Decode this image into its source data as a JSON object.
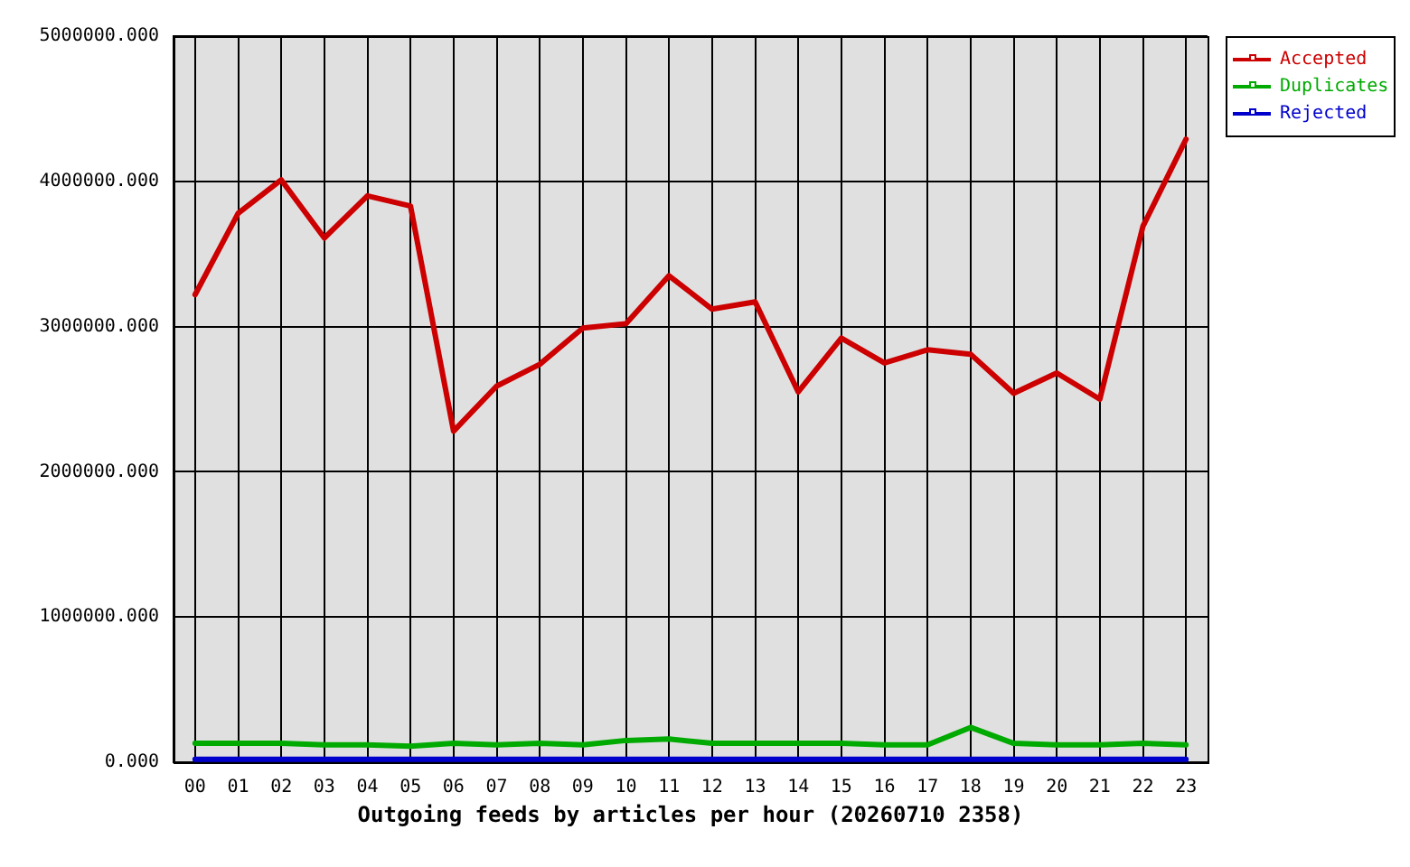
{
  "chart_data": {
    "type": "line",
    "xlabel": "Outgoing feeds by articles per hour (20260710 2358)",
    "categories": [
      "00",
      "01",
      "02",
      "03",
      "04",
      "05",
      "06",
      "07",
      "08",
      "09",
      "10",
      "11",
      "12",
      "13",
      "14",
      "15",
      "16",
      "17",
      "18",
      "19",
      "20",
      "21",
      "22",
      "23"
    ],
    "series": [
      {
        "name": "Accepted",
        "color": "#cc0000",
        "values": [
          3220000,
          3780000,
          4010000,
          3610000,
          3900000,
          3830000,
          2280000,
          2590000,
          2740000,
          2990000,
          3020000,
          3350000,
          3120000,
          3170000,
          2550000,
          2920000,
          2750000,
          2840000,
          2810000,
          2540000,
          2680000,
          2500000,
          3690000,
          4290000
        ]
      },
      {
        "name": "Duplicates",
        "color": "#00aa00",
        "values": [
          130000,
          130000,
          130000,
          120000,
          120000,
          110000,
          130000,
          120000,
          130000,
          120000,
          150000,
          160000,
          130000,
          130000,
          130000,
          130000,
          120000,
          120000,
          240000,
          130000,
          120000,
          120000,
          130000,
          120000
        ]
      },
      {
        "name": "Rejected",
        "color": "#0000cc",
        "values": [
          20000,
          20000,
          20000,
          20000,
          20000,
          20000,
          20000,
          20000,
          20000,
          20000,
          20000,
          20000,
          20000,
          20000,
          20000,
          20000,
          20000,
          20000,
          20000,
          20000,
          20000,
          20000,
          20000,
          20000
        ]
      }
    ],
    "ylim": [
      0,
      5000000
    ],
    "yticks": [
      {
        "value": 0,
        "label": "0.000"
      },
      {
        "value": 1000000,
        "label": "1000000.000"
      },
      {
        "value": 2000000,
        "label": "2000000.000"
      },
      {
        "value": 3000000,
        "label": "3000000.000"
      },
      {
        "value": 4000000,
        "label": "4000000.000"
      },
      {
        "value": 5000000,
        "label": "5000000.000"
      }
    ],
    "grid": true,
    "legend": "top right",
    "marker": "none",
    "line_style": "solid"
  }
}
